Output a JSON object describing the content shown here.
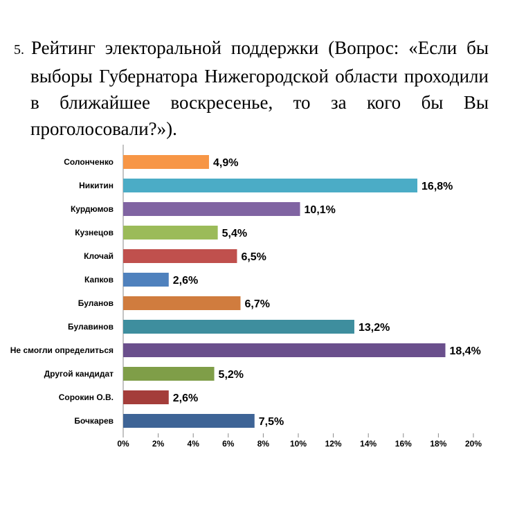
{
  "question": {
    "number": "5.",
    "text": "Рейтинг электоральной поддержки (Вопрос: «Если бы выборы Губернатора Нижегородской области проходили в ближайшее воскресенье, то за кого бы Вы проголосовали?»)."
  },
  "chart_data": {
    "type": "bar",
    "orientation": "horizontal",
    "categories": [
      "Солонченко",
      "Никитин",
      "Курдюмов",
      "Кузнецов",
      "Клочай",
      "Капков",
      "Буланов",
      "Булавинов",
      "Не смогли определиться",
      "Другой кандидат",
      "Сорокин О.В.",
      "Бочкарев"
    ],
    "values": [
      4.9,
      16.8,
      10.1,
      5.4,
      6.5,
      2.6,
      6.7,
      13.2,
      18.4,
      5.2,
      2.6,
      7.5
    ],
    "value_labels": [
      "4,9%",
      "16,8%",
      "10,1%",
      "5,4%",
      "6,5%",
      "2,6%",
      "6,7%",
      "13,2%",
      "18,4%",
      "5,2%",
      "2,6%",
      "7,5%"
    ],
    "colors": [
      "#F79646",
      "#4BACC6",
      "#8064A2",
      "#9BBB59",
      "#C0504D",
      "#4F81BD",
      "#D07C3E",
      "#3E8E9E",
      "#6A4F8C",
      "#7F9E48",
      "#A43D3A",
      "#3E6496"
    ],
    "xlim": [
      0,
      20
    ],
    "x_ticks": [
      0,
      2,
      4,
      6,
      8,
      10,
      12,
      14,
      16,
      18,
      20
    ],
    "x_tick_labels": [
      "0%",
      "2%",
      "4%",
      "6%",
      "8%",
      "10%",
      "12%",
      "14%",
      "16%",
      "18%",
      "20%"
    ],
    "grid": false,
    "legend": "none"
  }
}
